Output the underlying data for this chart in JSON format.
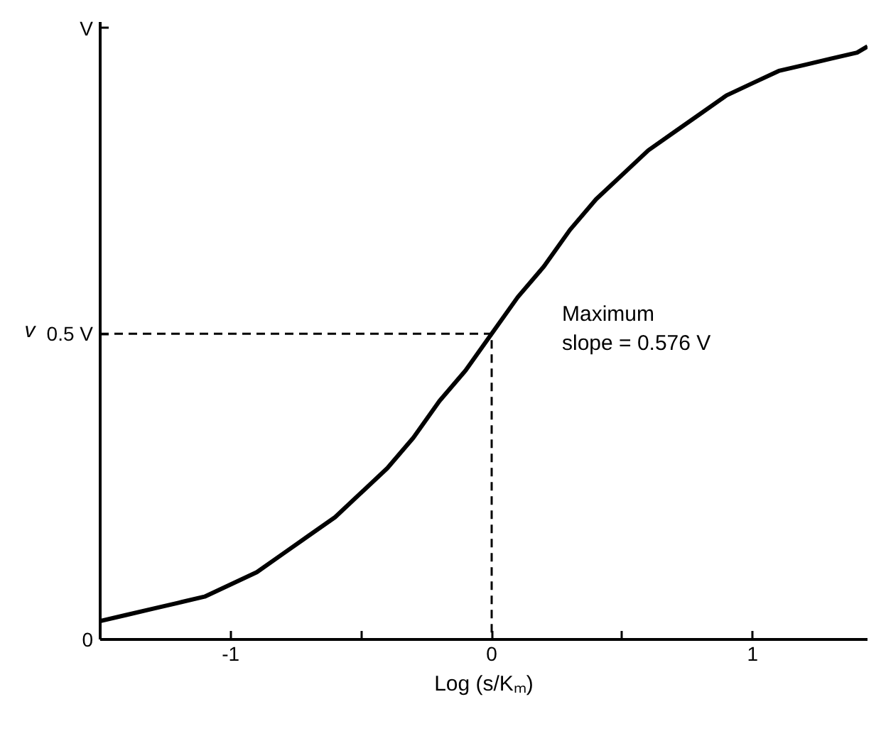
{
  "chart_data": {
    "type": "line",
    "xlabel": "Log (s/Kₘ)",
    "ylabel": "v",
    "xlim": [
      -1.5,
      1.44
    ],
    "ylim": [
      0,
      1.01
    ],
    "xticks": [
      -1,
      {
        "value": -0.5,
        "label": null
      },
      0,
      {
        "value": 0.5,
        "label": null
      },
      1
    ],
    "yticks": [
      0,
      {
        "value": 0.5,
        "label": "0.5 V"
      },
      {
        "value": 1,
        "label": "V"
      }
    ],
    "grid": false,
    "annotations": [
      "Maximum\nslope = 0.576 V"
    ],
    "series": [
      {
        "color": "#000000",
        "line_style": "solid",
        "x": [
          -1.5,
          -1.4,
          -1.3,
          -1.2,
          -1.1,
          -1.0,
          -0.9,
          -0.8,
          -0.7,
          -0.6,
          -0.5,
          -0.4,
          -0.3,
          -0.2,
          -0.1,
          0,
          0.1,
          0.2,
          0.3,
          0.4,
          0.5,
          0.6,
          0.7,
          0.8,
          0.9,
          1.0,
          1.1,
          1.2,
          1.3,
          1.4,
          1.44
        ],
        "values": [
          0.03,
          0.04,
          0.05,
          0.06,
          0.07,
          0.09,
          0.11,
          0.14,
          0.17,
          0.2,
          0.24,
          0.28,
          0.33,
          0.39,
          0.44,
          0.5,
          0.56,
          0.61,
          0.67,
          0.72,
          0.76,
          0.8,
          0.83,
          0.86,
          0.89,
          0.91,
          0.93,
          0.94,
          0.95,
          0.96,
          0.97
        ]
      },
      {
        "type": "line",
        "color": "#000000",
        "line_style": "dashed",
        "x": [
          -1.5,
          0,
          0
        ],
        "values": [
          0.5,
          0.5,
          0
        ]
      }
    ]
  }
}
